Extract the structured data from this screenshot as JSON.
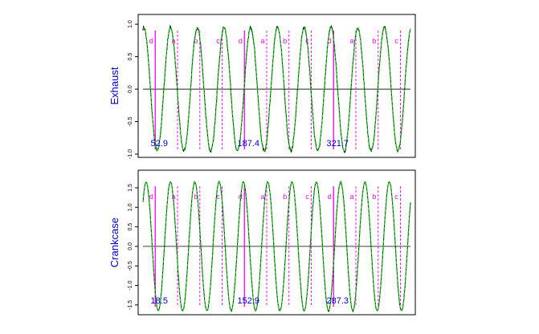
{
  "colors": {
    "frame": "#000000",
    "trace_measured": "#000000",
    "trace_model": "#00cc00",
    "marker": "#ff00ff",
    "ylabel": "#0000cc",
    "angle_label": "#0000cc"
  },
  "chart_data": [
    {
      "type": "line",
      "ylabel": "Exhaust",
      "ylim": [
        -1.05,
        1.15
      ],
      "yticks": [
        "-1.0",
        "-0.5",
        "0.0",
        "0.5",
        "1.0"
      ],
      "ytick_values": [
        -1.0,
        -0.5,
        0.0,
        0.5,
        1.0
      ],
      "x_range": [
        0,
        12
      ],
      "baseline": 0,
      "cycles": 10,
      "amplitude": 0.95,
      "phase_offset": 0.22,
      "series": [
        {
          "role": "measured",
          "noise": 0.06
        },
        {
          "role": "model",
          "noise": 0.0
        }
      ],
      "markers": [
        {
          "label": "d",
          "x": 0.55,
          "style": "solid"
        },
        {
          "label": "a",
          "x": 1.55,
          "style": "dashed"
        },
        {
          "label": "b",
          "x": 2.55,
          "style": "dashed"
        },
        {
          "label": "c",
          "x": 3.55,
          "style": "dashed"
        },
        {
          "label": "d",
          "x": 4.55,
          "style": "solid"
        },
        {
          "label": "a",
          "x": 5.55,
          "style": "dashed"
        },
        {
          "label": "b",
          "x": 6.55,
          "style": "dashed"
        },
        {
          "label": "c",
          "x": 7.55,
          "style": "dashed"
        },
        {
          "label": "d",
          "x": 8.55,
          "style": "solid"
        },
        {
          "label": "a",
          "x": 9.55,
          "style": "dashed"
        },
        {
          "label": "b",
          "x": 10.55,
          "style": "dashed"
        },
        {
          "label": "c",
          "x": 11.55,
          "style": "dashed"
        }
      ],
      "angle_labels": [
        {
          "text": "52.9",
          "x": 0.55
        },
        {
          "text": "187.4",
          "x": 4.55
        },
        {
          "text": "321.7",
          "x": 8.55
        }
      ]
    },
    {
      "type": "line",
      "ylabel": "Crankcase",
      "ylim": [
        -1.75,
        1.95
      ],
      "yticks": [
        "-1.5",
        "-1.0",
        "-0.5",
        "0.0",
        "0.5",
        "1.0",
        "1.5"
      ],
      "ytick_values": [
        -1.5,
        -1.0,
        -0.5,
        0.0,
        0.5,
        1.0,
        1.5
      ],
      "x_range": [
        0,
        12
      ],
      "baseline": 0,
      "cycles": 11,
      "amplitude": 1.65,
      "phase_offset": 0.12,
      "series": [
        {
          "role": "measured",
          "noise": 0.03
        },
        {
          "role": "model",
          "noise": 0.0
        }
      ],
      "markers": [
        {
          "label": "d",
          "x": 0.55,
          "style": "solid"
        },
        {
          "label": "a",
          "x": 1.55,
          "style": "dashed"
        },
        {
          "label": "b",
          "x": 2.55,
          "style": "dashed"
        },
        {
          "label": "c",
          "x": 3.55,
          "style": "dashed"
        },
        {
          "label": "d",
          "x": 4.55,
          "style": "solid"
        },
        {
          "label": "a",
          "x": 5.55,
          "style": "dashed"
        },
        {
          "label": "b",
          "x": 6.55,
          "style": "dashed"
        },
        {
          "label": "c",
          "x": 7.55,
          "style": "dashed"
        },
        {
          "label": "d",
          "x": 8.55,
          "style": "solid"
        },
        {
          "label": "a",
          "x": 9.55,
          "style": "dashed"
        },
        {
          "label": "b",
          "x": 10.55,
          "style": "dashed"
        },
        {
          "label": "c",
          "x": 11.55,
          "style": "dashed"
        }
      ],
      "angle_labels": [
        {
          "text": "18.5",
          "x": 0.55
        },
        {
          "text": "152.9",
          "x": 4.55
        },
        {
          "text": "287.3",
          "x": 8.55
        }
      ]
    }
  ]
}
